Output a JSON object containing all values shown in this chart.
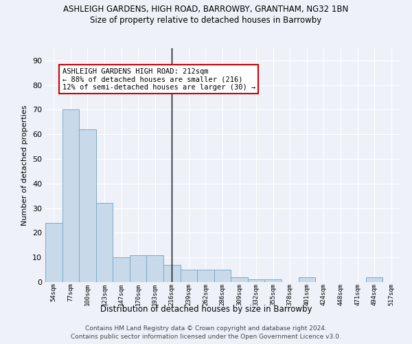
{
  "title1": "ASHLEIGH GARDENS, HIGH ROAD, BARROWBY, GRANTHAM, NG32 1BN",
  "title2": "Size of property relative to detached houses in Barrowby",
  "xlabel": "Distribution of detached houses by size in Barrowby",
  "ylabel": "Number of detached properties",
  "categories": [
    "54sqm",
    "77sqm",
    "100sqm",
    "123sqm",
    "147sqm",
    "170sqm",
    "193sqm",
    "216sqm",
    "239sqm",
    "262sqm",
    "286sqm",
    "309sqm",
    "332sqm",
    "355sqm",
    "378sqm",
    "401sqm",
    "424sqm",
    "448sqm",
    "471sqm",
    "494sqm",
    "517sqm"
  ],
  "values": [
    24,
    70,
    62,
    32,
    10,
    11,
    11,
    7,
    5,
    5,
    5,
    2,
    1,
    1,
    0,
    2,
    0,
    0,
    0,
    2,
    0
  ],
  "bar_color": "#c8daea",
  "bar_edge_color": "#7aaac8",
  "highlight_index": 7,
  "highlight_line_color": "#000000",
  "ylim": [
    0,
    95
  ],
  "yticks": [
    0,
    10,
    20,
    30,
    40,
    50,
    60,
    70,
    80,
    90
  ],
  "annotation_text": "ASHLEIGH GARDENS HIGH ROAD: 212sqm\n← 88% of detached houses are smaller (216)\n12% of semi-detached houses are larger (30) →",
  "annotation_box_facecolor": "#ffffff",
  "annotation_box_edgecolor": "#cc0000",
  "footer1": "Contains HM Land Registry data © Crown copyright and database right 2024.",
  "footer2": "Contains public sector information licensed under the Open Government Licence v3.0.",
  "bg_color": "#eef2f8",
  "grid_color": "#ffffff"
}
